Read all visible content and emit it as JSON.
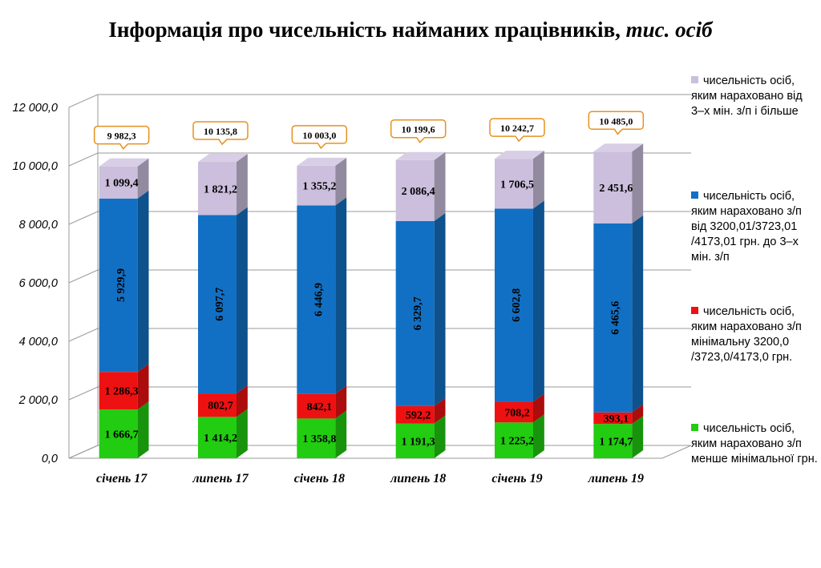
{
  "title": {
    "main": "Інформація про чисельність найманих працівників,",
    "unit": "тис. осіб"
  },
  "colors": {
    "green": "#22cc11",
    "red": "#ee1111",
    "blue": "#1270c4",
    "lilac": "#cbbfdd",
    "callout_border": "#e8901e"
  },
  "legend": [
    {
      "label": "чисельність осіб, яким нараховано від 3–х мін. з/п і більше",
      "color": "#cbbfdd"
    },
    {
      "label": "чисельність осіб, яким нараховано з/п від 3200,01/3723,01 /4173,01 грн. до 3–х мін. з/п",
      "color": "#1270c4"
    },
    {
      "label": "чисельність осіб, яким нараховано з/п мінімальну 3200,0 /3723,0/4173,0 грн.",
      "color": "#ee1111"
    },
    {
      "label": "чисельність осіб, яким нараховано з/п менше мінімальної грн.",
      "color": "#22cc11"
    }
  ],
  "chart_data": {
    "type": "bar",
    "stacked": true,
    "three_d": true,
    "categories": [
      "січень 17",
      "липень 17",
      "січень 18",
      "липень 18",
      "січень 19",
      "липень 19"
    ],
    "series": [
      {
        "name": "чисельність осіб, яким нараховано з/п менше мінімальної грн.",
        "values": [
          1666.7,
          1414.2,
          1358.8,
          1191.3,
          1225.2,
          1174.7
        ],
        "labels": [
          "1 666,7",
          "1 414,2",
          "1 358,8",
          "1 191,3",
          "1 225,2",
          "1 174,7"
        ]
      },
      {
        "name": "чисельність осіб, яким нараховано з/п мінімальну 3200,0 /3723,0/4173,0 грн.",
        "values": [
          1286.3,
          802.7,
          842.1,
          592.2,
          708.2,
          393.1
        ],
        "labels": [
          "1 286,3",
          "802,7",
          "842,1",
          "592,2",
          "708,2",
          "393,1"
        ]
      },
      {
        "name": "чисельність осіб, яким нараховано з/п від 3200,01/3723,01 /4173,01 грн. до 3–х мін. з/п",
        "values": [
          5929.9,
          6097.7,
          6446.9,
          6329.7,
          6602.8,
          6465.6
        ],
        "labels": [
          "5 929,9",
          "6 097,7",
          "6 446,9",
          "6 329,7",
          "6 602,8",
          "6 465,6"
        ]
      },
      {
        "name": "чисельність осіб, яким нараховано від 3–х мін. з/п і більше",
        "values": [
          1099.4,
          1821.2,
          1355.2,
          2086.4,
          1706.5,
          2451.6
        ],
        "labels": [
          "1 099,4",
          "1 821,2",
          "1 355,2",
          "2 086,4",
          "1 706,5",
          "2 451,6"
        ]
      }
    ],
    "totals": [
      9982.3,
      10135.8,
      10003.0,
      10199.6,
      10242.7,
      10485.0
    ],
    "total_labels": [
      "9 982,3",
      "10 135,8",
      "10 003,0",
      "10 199,6",
      "10 242,7",
      "10 485,0"
    ],
    "ylim": [
      0,
      12000
    ],
    "yticks": [
      "0,0",
      "2 000,0",
      "4 000,0",
      "6 000,0",
      "8 000,0",
      "10 000,0",
      "12 000,0"
    ],
    "grid": true,
    "legend_position": "right"
  }
}
